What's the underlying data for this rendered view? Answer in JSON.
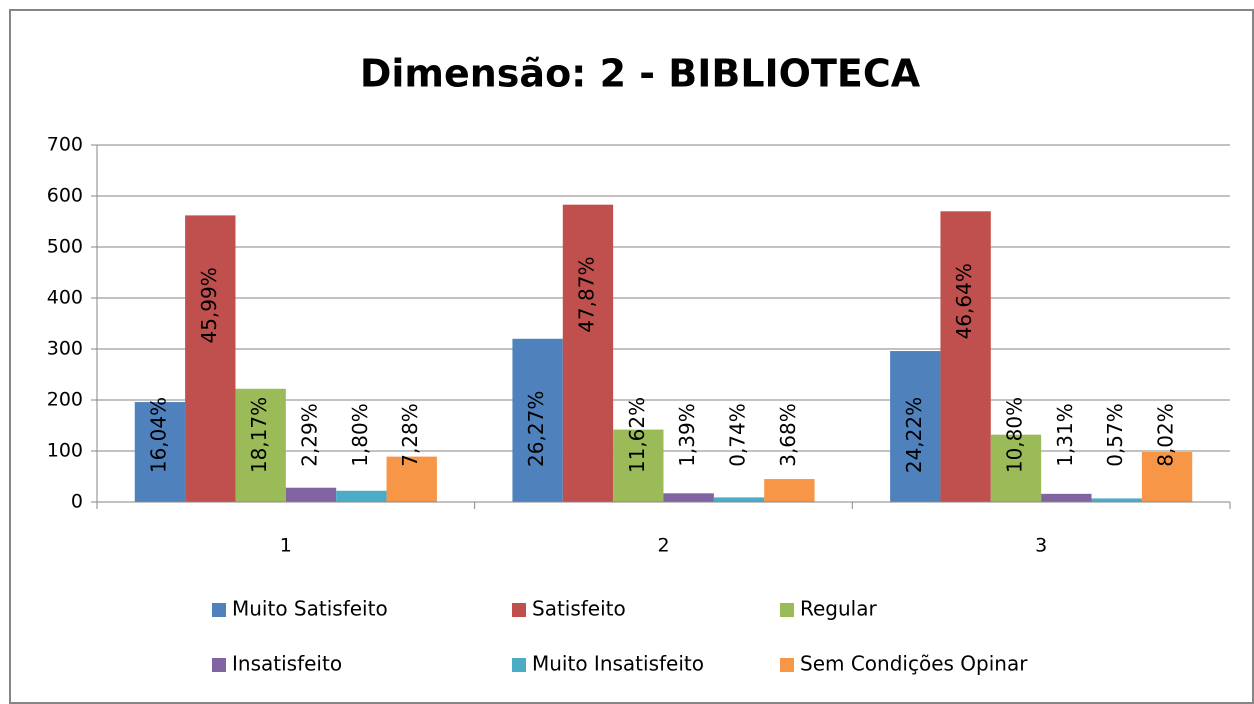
{
  "chart_data": {
    "type": "bar",
    "title": "Dimensão: 2 - BIBLIOTECA",
    "categories": [
      "1",
      "2",
      "3"
    ],
    "series": [
      {
        "name": "Muito Satisfeito",
        "color": "#4f81bd",
        "values": [
          196,
          320,
          296
        ],
        "data_labels": [
          "16,04%",
          "26,27%",
          "24,22%"
        ]
      },
      {
        "name": "Satisfeito",
        "color": "#c0504d",
        "values": [
          562,
          583,
          570
        ],
        "data_labels": [
          "45,99%",
          "47,87%",
          "46,64%"
        ]
      },
      {
        "name": "Regular",
        "color": "#9bbb59",
        "values": [
          222,
          142,
          132
        ],
        "data_labels": [
          "18,17%",
          "11,62%",
          "10,80%"
        ]
      },
      {
        "name": "Insatisfeito",
        "color": "#8064a2",
        "values": [
          28,
          17,
          16
        ],
        "data_labels": [
          "2,29%",
          "1,39%",
          "1,31%"
        ]
      },
      {
        "name": "Muito Insatisfeito",
        "color": "#4bacc6",
        "values": [
          22,
          9,
          7
        ],
        "data_labels": [
          "1,80%",
          "0,74%",
          "0,57%"
        ]
      },
      {
        "name": "Sem Condições Opinar",
        "color": "#f79646",
        "values": [
          89,
          45,
          98
        ],
        "data_labels": [
          "7,28%",
          "3,68%",
          "8,02%"
        ]
      }
    ],
    "ylim": [
      0,
      700
    ],
    "yticks": [
      0,
      100,
      200,
      300,
      400,
      500,
      600,
      700
    ],
    "grid": true,
    "legend": "bottom"
  }
}
